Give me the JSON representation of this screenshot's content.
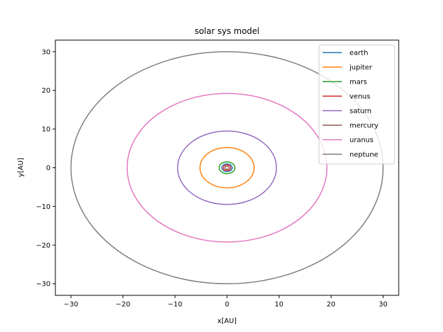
{
  "chart_data": {
    "type": "line",
    "title": "solar sys model",
    "xlabel": "x[AU]",
    "ylabel": "y[AU]",
    "xlim": [
      -33,
      33
    ],
    "ylim": [
      -33,
      33
    ],
    "xticks": [
      -30,
      -20,
      -10,
      0,
      10,
      20,
      30
    ],
    "yticks": [
      -30,
      -20,
      -10,
      0,
      10,
      20,
      30
    ],
    "xtick_labels": [
      "−30",
      "−20",
      "−10",
      "0",
      "10",
      "20",
      "30"
    ],
    "ytick_labels": [
      "−30",
      "−20",
      "−10",
      "0",
      "10",
      "20",
      "30"
    ],
    "grid": false,
    "legend_position": "top-right",
    "series": [
      {
        "name": "earth",
        "color": "#1f77b4",
        "radius": 1.0
      },
      {
        "name": "jupiter",
        "color": "#ff7f0e",
        "radius": 5.2
      },
      {
        "name": "mars",
        "color": "#2ca02c",
        "radius": 1.52
      },
      {
        "name": "venus",
        "color": "#d62728",
        "radius": 0.72
      },
      {
        "name": "saturn",
        "color": "#9467bd",
        "radius": 9.5
      },
      {
        "name": "mercury",
        "color": "#8c564b",
        "radius": 0.39
      },
      {
        "name": "uranus",
        "color": "#e377c2",
        "radius": 19.2
      },
      {
        "name": "neptune",
        "color": "#7f7f7f",
        "radius": 30.0
      }
    ]
  }
}
